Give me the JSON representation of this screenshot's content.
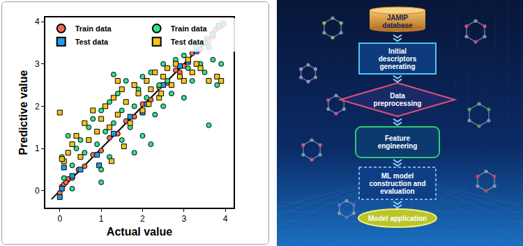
{
  "chart_data": {
    "type": "scatter",
    "x_label": "Actual value",
    "y_label": "Predictive value",
    "xlim": [
      -0.35,
      4.2
    ],
    "ylim": [
      -0.4,
      4.1
    ],
    "xticks": [
      0,
      1,
      2,
      3,
      4
    ],
    "yticks": [
      0,
      1,
      2,
      3,
      4
    ],
    "grid": false,
    "legend": "upper left",
    "series": [
      {
        "type": "line",
        "color": "#000000",
        "line_style": "solid",
        "x": [
          -0.2,
          4.0
        ],
        "y": [
          -0.2,
          4.0
        ]
      },
      {
        "name": "Train data",
        "color": "#f26b4f",
        "marker": "circle",
        "x": [
          0.05,
          0.1,
          0.2,
          0.3,
          0.45,
          0.6,
          0.8,
          1.0,
          1.2,
          1.4,
          1.6,
          1.8,
          2.0,
          2.2,
          2.4,
          2.6,
          2.8,
          3.0,
          3.2,
          3.4,
          3.55,
          3.7,
          3.8,
          3.9,
          0.0,
          0.15,
          2.9,
          3.3,
          3.6,
          3.75
        ],
        "y": [
          0.1,
          0.15,
          0.28,
          0.3,
          0.5,
          0.58,
          0.85,
          0.95,
          1.25,
          1.35,
          1.65,
          1.75,
          2.05,
          2.15,
          2.45,
          2.55,
          2.85,
          2.95,
          3.25,
          3.35,
          3.6,
          3.65,
          3.85,
          3.9,
          -0.05,
          0.2,
          2.8,
          3.35,
          3.55,
          3.8
        ]
      },
      {
        "name": "Test data",
        "color": "#1f9ce6",
        "marker": "square",
        "x": [
          0.0,
          0.05,
          0.1,
          0.3,
          0.5,
          0.9,
          1.3,
          1.7,
          2.1,
          2.5,
          2.9,
          3.1,
          3.3,
          3.5,
          3.6,
          3.7,
          3.85,
          3.95,
          0.95,
          2.0
        ],
        "y": [
          -0.15,
          0.05,
          0.55,
          0.35,
          0.5,
          0.85,
          1.35,
          1.75,
          2.05,
          2.5,
          2.95,
          3.05,
          3.3,
          3.5,
          3.4,
          3.7,
          3.9,
          3.95,
          0.6,
          1.85
        ]
      },
      {
        "name": "Train data",
        "color": "#2fe38a",
        "marker": "circle",
        "x": [
          0.05,
          0.1,
          0.2,
          0.3,
          0.4,
          0.5,
          0.6,
          0.7,
          0.8,
          0.9,
          1.0,
          1.0,
          1.1,
          1.2,
          1.2,
          1.3,
          1.4,
          1.5,
          1.5,
          1.6,
          1.7,
          1.8,
          1.9,
          2.0,
          2.0,
          2.1,
          2.2,
          2.3,
          2.4,
          2.5,
          2.5,
          2.6,
          2.7,
          2.8,
          2.9,
          3.0,
          3.0,
          3.1,
          3.2,
          3.3,
          3.4,
          3.5,
          3.6,
          3.7,
          3.8,
          3.9,
          1.0,
          1.3,
          2.2,
          0.3,
          3.5,
          1.8
        ],
        "y": [
          0.8,
          0.3,
          1.3,
          0.6,
          1.0,
          1.2,
          0.9,
          1.5,
          1.7,
          1.1,
          0.5,
          1.9,
          1.4,
          2.1,
          0.8,
          1.6,
          2.3,
          1.2,
          1.9,
          2.6,
          1.5,
          2.0,
          2.4,
          1.3,
          2.7,
          2.2,
          2.8,
          1.8,
          2.5,
          2.0,
          3.0,
          2.6,
          2.3,
          3.1,
          2.7,
          2.2,
          3.2,
          2.9,
          2.6,
          3.4,
          3.0,
          2.8,
          1.55,
          3.1,
          2.5,
          3.0,
          0.2,
          2.75,
          1.1,
          0.05,
          3.5,
          0.9
        ]
      },
      {
        "name": "Test data",
        "color": "#f6c31a",
        "marker": "square",
        "x": [
          0.0,
          0.1,
          0.2,
          0.3,
          0.4,
          0.5,
          0.6,
          0.7,
          0.8,
          0.9,
          1.0,
          1.1,
          1.2,
          1.3,
          1.4,
          1.5,
          1.6,
          1.7,
          1.8,
          1.9,
          2.0,
          2.1,
          2.2,
          2.3,
          2.4,
          2.5,
          2.6,
          2.7,
          2.8,
          2.9,
          3.0,
          3.1,
          3.2,
          3.3,
          3.4,
          3.6,
          3.8,
          3.9,
          1.25,
          1.55,
          2.15,
          2.45,
          0.05,
          1.4
        ],
        "y": [
          1.85,
          0.7,
          0.9,
          1.1,
          1.3,
          0.8,
          1.6,
          1.2,
          1.9,
          1.4,
          1.7,
          2.0,
          1.5,
          2.2,
          1.8,
          2.4,
          2.1,
          1.6,
          2.5,
          2.3,
          1.9,
          2.6,
          2.4,
          2.8,
          2.2,
          2.7,
          2.9,
          2.5,
          3.0,
          2.7,
          2.6,
          3.1,
          2.8,
          3.0,
          2.9,
          2.6,
          2.7,
          2.6,
          0.7,
          1.05,
          2.05,
          2.3,
          0.75,
          2.6
        ]
      }
    ]
  },
  "diagram": {
    "steps": [
      {
        "lines": [
          "JAMIP",
          "database"
        ]
      },
      {
        "lines": [
          "Initial",
          "descriptors",
          "generating"
        ]
      },
      {
        "lines": [
          "Data",
          "preprocessing"
        ]
      },
      {
        "lines": [
          "Feature",
          "engineering"
        ]
      },
      {
        "lines": [
          "ML model",
          "construction and",
          "evaluation"
        ]
      },
      {
        "lines": [
          "Model application"
        ]
      }
    ]
  }
}
